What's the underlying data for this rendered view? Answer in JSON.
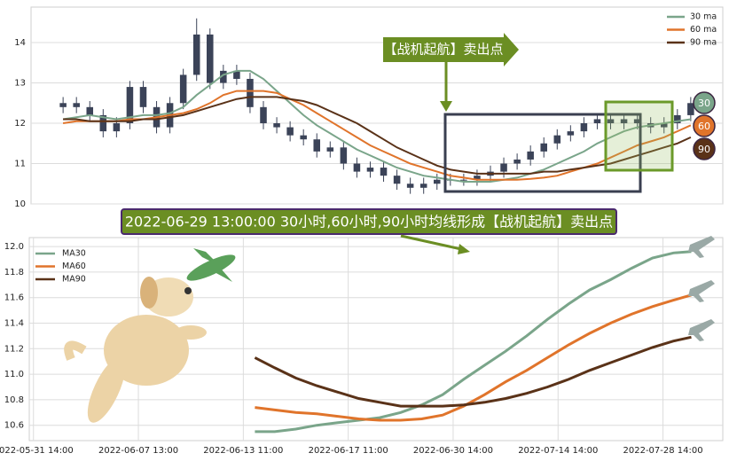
{
  "chart_data": [
    {
      "type": "candlestick",
      "open": [
        12.4,
        12.5,
        12.4,
        12.2,
        11.8,
        12.0,
        12.9,
        12.4,
        11.9,
        12.5,
        13.2,
        14.2,
        13.0,
        13.3,
        13.1,
        12.4,
        12.0,
        11.9,
        11.7,
        11.6,
        11.3,
        11.4,
        11.0,
        10.8,
        10.9,
        10.7,
        10.5,
        10.4,
        10.5,
        10.6,
        10.6,
        10.6,
        10.7,
        10.8,
        11.0,
        11.1,
        11.3,
        11.5,
        11.7,
        11.8,
        12.0,
        12.1,
        12.0,
        12.1,
        12.0,
        11.9,
        12.0,
        12.2
      ],
      "high": [
        12.65,
        12.65,
        12.55,
        12.35,
        12.15,
        13.05,
        13.05,
        12.55,
        12.65,
        13.35,
        14.6,
        14.35,
        13.45,
        13.45,
        13.25,
        12.55,
        12.15,
        12.05,
        11.85,
        11.75,
        11.55,
        11.55,
        11.15,
        11.05,
        11.05,
        10.85,
        10.65,
        10.65,
        10.75,
        10.75,
        10.75,
        10.85,
        10.95,
        11.15,
        11.25,
        11.45,
        11.65,
        11.85,
        11.95,
        12.15,
        12.25,
        12.25,
        12.25,
        12.25,
        12.15,
        12.15,
        12.35,
        12.65
      ],
      "low": [
        12.25,
        12.25,
        12.05,
        11.65,
        11.65,
        11.85,
        12.25,
        11.75,
        11.75,
        12.35,
        13.05,
        12.85,
        12.85,
        12.95,
        12.25,
        11.85,
        11.75,
        11.55,
        11.45,
        11.15,
        11.15,
        10.85,
        10.65,
        10.65,
        10.55,
        10.35,
        10.25,
        10.25,
        10.35,
        10.45,
        10.45,
        10.45,
        10.55,
        10.65,
        10.85,
        10.95,
        11.15,
        11.35,
        11.55,
        11.65,
        11.85,
        11.85,
        11.85,
        11.85,
        11.75,
        11.75,
        11.85,
        12.05
      ],
      "close": [
        12.5,
        12.4,
        12.2,
        11.8,
        12.0,
        12.9,
        12.4,
        11.9,
        12.5,
        13.2,
        14.2,
        13.0,
        13.3,
        13.1,
        12.4,
        12.0,
        11.9,
        11.7,
        11.6,
        11.3,
        11.4,
        11.0,
        10.8,
        10.9,
        10.7,
        10.5,
        10.4,
        10.5,
        10.6,
        10.6,
        10.6,
        10.7,
        10.8,
        11.0,
        11.1,
        11.3,
        11.5,
        11.7,
        11.8,
        12.0,
        12.1,
        12.0,
        12.1,
        12.0,
        11.9,
        12.0,
        12.2,
        12.5
      ],
      "candle_color": "#3b4358",
      "series": [
        {
          "name": "30 ma",
          "color": "#7aa58a",
          "values": [
            12.1,
            12.15,
            12.2,
            12.15,
            12.1,
            12.15,
            12.2,
            12.2,
            12.25,
            12.4,
            12.7,
            12.95,
            13.2,
            13.3,
            13.3,
            13.1,
            12.8,
            12.5,
            12.2,
            11.95,
            11.75,
            11.55,
            11.35,
            11.2,
            11.05,
            10.9,
            10.8,
            10.7,
            10.65,
            10.6,
            10.55,
            10.55,
            10.55,
            10.6,
            10.65,
            10.75,
            10.85,
            11.0,
            11.15,
            11.3,
            11.5,
            11.65,
            11.8,
            11.9,
            11.95,
            12.0,
            12.05,
            12.1
          ]
        },
        {
          "name": "60 ma",
          "color": "#e0742b",
          "values": [
            12.0,
            12.05,
            12.05,
            12.05,
            12.05,
            12.1,
            12.1,
            12.15,
            12.2,
            12.25,
            12.35,
            12.5,
            12.7,
            12.8,
            12.8,
            12.8,
            12.75,
            12.6,
            12.45,
            12.25,
            12.05,
            11.85,
            11.65,
            11.45,
            11.3,
            11.15,
            11.0,
            10.9,
            10.8,
            10.7,
            10.65,
            10.6,
            10.6,
            10.6,
            10.6,
            10.62,
            10.65,
            10.7,
            10.8,
            10.9,
            11.0,
            11.15,
            11.3,
            11.45,
            11.55,
            11.65,
            11.8,
            11.95
          ]
        },
        {
          "name": "90 ma",
          "color": "#5a3218",
          "values": [
            12.1,
            12.1,
            12.05,
            12.05,
            12.05,
            12.05,
            12.1,
            12.1,
            12.15,
            12.2,
            12.3,
            12.4,
            12.5,
            12.6,
            12.65,
            12.65,
            12.65,
            12.6,
            12.55,
            12.45,
            12.3,
            12.15,
            12.0,
            11.8,
            11.6,
            11.4,
            11.25,
            11.1,
            10.95,
            10.85,
            10.8,
            10.75,
            10.75,
            10.75,
            10.75,
            10.75,
            10.8,
            10.8,
            10.85,
            10.9,
            10.95,
            11.0,
            11.1,
            11.2,
            11.3,
            11.4,
            11.5,
            11.65
          ]
        }
      ],
      "xlim": [
        -2.4,
        49.4
      ],
      "ylim": [
        10,
        14.88
      ],
      "yticks": [
        10,
        11,
        12,
        13,
        14
      ],
      "grid": true,
      "legend": "upper right",
      "signal_label": "【战机起航】卖出点",
      "badges": [
        {
          "label": "30",
          "color": "#7aa58a"
        },
        {
          "label": "60",
          "color": "#e0742b"
        },
        {
          "label": "90",
          "color": "#5a3218"
        }
      ]
    },
    {
      "type": "line",
      "title": "2022-06-29 13:00:00 30小时,60小时,90小时均线形成【战机起航】卖出点",
      "x": [
        2.11,
        2.3,
        2.5,
        2.7,
        2.9,
        3.1,
        3.3,
        3.5,
        3.7,
        3.9,
        4.1,
        4.3,
        4.5,
        4.7,
        4.9,
        5.1,
        5.3,
        5.5,
        5.7,
        5.9,
        6.1,
        6.27
      ],
      "series": [
        {
          "name": "MA30",
          "color": "#7aa58a",
          "values": [
            10.55,
            10.55,
            10.57,
            10.6,
            10.62,
            10.64,
            10.66,
            10.7,
            10.76,
            10.84,
            10.96,
            11.07,
            11.18,
            11.3,
            11.43,
            11.55,
            11.66,
            11.74,
            11.83,
            11.91,
            11.95,
            11.96
          ]
        },
        {
          "name": "MA60",
          "color": "#e0742b",
          "values": [
            10.74,
            10.72,
            10.7,
            10.69,
            10.67,
            10.65,
            10.64,
            10.64,
            10.65,
            10.68,
            10.75,
            10.84,
            10.94,
            11.03,
            11.13,
            11.23,
            11.32,
            11.4,
            11.47,
            11.53,
            11.58,
            11.62
          ]
        },
        {
          "name": "MA90",
          "color": "#5a3218",
          "values": [
            11.13,
            11.05,
            10.97,
            10.91,
            10.86,
            10.81,
            10.78,
            10.75,
            10.75,
            10.75,
            10.76,
            10.78,
            10.81,
            10.85,
            10.9,
            10.96,
            11.03,
            11.09,
            11.15,
            11.21,
            11.26,
            11.29
          ]
        }
      ],
      "xlim": [
        -0.04,
        6.57
      ],
      "xticks": [
        {
          "value": 0,
          "label": "2022-05-31 14:00"
        },
        {
          "value": 1,
          "label": "2022-06-07 13:00"
        },
        {
          "value": 2,
          "label": "2022-06-13 11:00"
        },
        {
          "value": 3,
          "label": "2022-06-17 11:00"
        },
        {
          "value": 4,
          "label": "2022-06-30 14:00"
        },
        {
          "value": 5,
          "label": "2022-07-14 14:00"
        },
        {
          "value": 6,
          "label": "2022-07-28 14:00"
        }
      ],
      "ylim": [
        10.48,
        12.07
      ],
      "yticks": [
        10.6,
        10.8,
        {
          "value": 11,
          "label": "11.0"
        },
        11.2,
        11.4,
        11.6,
        11.8,
        {
          "value": 12,
          "label": "12.0"
        }
      ],
      "grid": true,
      "legend": "upper left"
    }
  ]
}
